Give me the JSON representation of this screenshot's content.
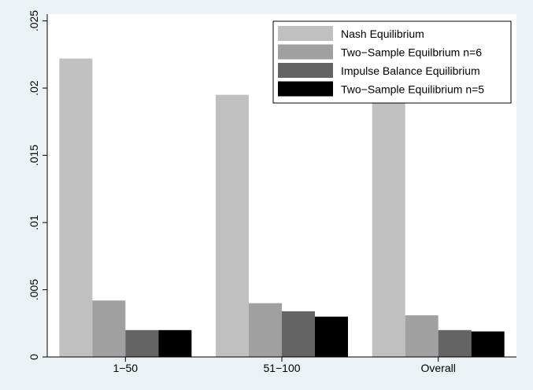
{
  "chart_data": {
    "type": "bar",
    "categories": [
      "1−50",
      "51−100",
      "Overall"
    ],
    "series": [
      {
        "name": "Nash Equilibrium",
        "color": "#c0c0c0",
        "values": [
          0.0222,
          0.0195,
          0.0197
        ]
      },
      {
        "name": "Two−Sample Equilbrium n=6",
        "color": "#a0a0a0",
        "values": [
          0.0042,
          0.004,
          0.0031
        ]
      },
      {
        "name": "Impulse Balance Equilibrium",
        "color": "#646464",
        "values": [
          0.002,
          0.0034,
          0.002
        ]
      },
      {
        "name": "Two−Sample Equilibrium n=5",
        "color": "#000000",
        "values": [
          0.002,
          0.003,
          0.0019
        ]
      }
    ],
    "ylim": [
      0,
      0.0255
    ],
    "yticks": [
      0,
      0.005,
      0.01,
      0.015,
      0.02,
      0.025
    ],
    "ytick_labels": [
      "0",
      ".005",
      ".01",
      ".015",
      ".02",
      ".025"
    ],
    "title": "",
    "xlabel": "",
    "ylabel": "",
    "legend_position": "top-right",
    "grid": false,
    "plot_background": "#ffffff",
    "page_background": "#eaf2f3"
  }
}
